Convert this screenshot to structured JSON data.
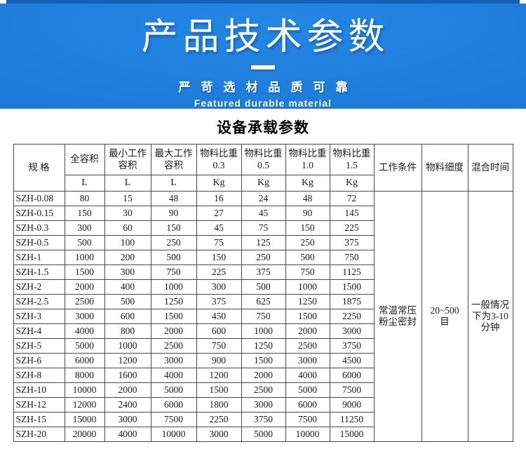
{
  "banner": {
    "title": "产品技术参数",
    "subtitle_cn": "严苛选材品质可靠",
    "subtitle_en": "Featured durable material",
    "bg_color": "#1d7ad8",
    "top_strip_color": "#1560ba",
    "text_color": "#ffffff"
  },
  "section": {
    "title": "设备承载参数"
  },
  "table": {
    "header": {
      "spec": "规 格",
      "cols": [
        {
          "label": "全容积",
          "unit": "L"
        },
        {
          "label": "最小工作\n容积",
          "unit": "L"
        },
        {
          "label": "最大工作\n容积",
          "unit": "L"
        },
        {
          "label": "物料比重\n0.3",
          "unit": "Kg"
        },
        {
          "label": "物料比重\n0.5",
          "unit": "Kg"
        },
        {
          "label": "物料比重\n1.0",
          "unit": "Kg"
        },
        {
          "label": "物料比重\n1.5",
          "unit": "Kg"
        }
      ],
      "work_condition": "工作条件",
      "fineness": "物料细度",
      "mix_time": "混合时间"
    },
    "merged": {
      "work_condition": "常温常压\n粉尘密封",
      "fineness": "20~500\n目",
      "mix_time": "一般情况\n下为3-10\n分钟"
    },
    "rows": [
      {
        "spec": "SZH-0.08",
        "values": [
          80,
          15,
          48,
          16,
          24,
          48,
          72
        ]
      },
      {
        "spec": "SZH-0.15",
        "values": [
          150,
          30,
          90,
          27,
          45,
          90,
          145
        ]
      },
      {
        "spec": "SZH-0.3",
        "values": [
          300,
          60,
          150,
          45,
          75,
          150,
          225
        ]
      },
      {
        "spec": "SZH-0.5",
        "values": [
          500,
          100,
          250,
          75,
          125,
          250,
          375
        ]
      },
      {
        "spec": "SZH-1",
        "values": [
          1000,
          200,
          500,
          150,
          250,
          500,
          750
        ]
      },
      {
        "spec": "SZH-1.5",
        "values": [
          1500,
          300,
          750,
          225,
          375,
          750,
          1125
        ]
      },
      {
        "spec": "SZH-2",
        "values": [
          2000,
          400,
          1000,
          300,
          500,
          1000,
          1500
        ]
      },
      {
        "spec": "SZH-2.5",
        "values": [
          2500,
          500,
          1250,
          375,
          625,
          1250,
          1875
        ]
      },
      {
        "spec": "SZH-3",
        "values": [
          3000,
          600,
          1500,
          450,
          750,
          1500,
          2250
        ]
      },
      {
        "spec": "SZH-4",
        "values": [
          4000,
          800,
          2000,
          600,
          1000,
          2000,
          3000
        ]
      },
      {
        "spec": "SZH-5",
        "values": [
          5000,
          1000,
          2500,
          750,
          1250,
          2500,
          3750
        ]
      },
      {
        "spec": "SZH-6",
        "values": [
          6000,
          1200,
          3000,
          900,
          1500,
          3000,
          4500
        ]
      },
      {
        "spec": "SZH-8",
        "values": [
          8000,
          1600,
          4000,
          1200,
          2000,
          4000,
          6000
        ]
      },
      {
        "spec": "SZH-10",
        "values": [
          10000,
          2000,
          5000,
          1500,
          2500,
          5000,
          7500
        ]
      },
      {
        "spec": "SZH-12",
        "values": [
          12000,
          2400,
          6000,
          1800,
          3000,
          6000,
          9000
        ]
      },
      {
        "spec": "SZH-15",
        "values": [
          15000,
          3000,
          7500,
          2250,
          3750,
          7500,
          11250
        ]
      },
      {
        "spec": "SZH-20",
        "values": [
          20000,
          4000,
          10000,
          3000,
          5000,
          10000,
          15000
        ]
      }
    ]
  }
}
